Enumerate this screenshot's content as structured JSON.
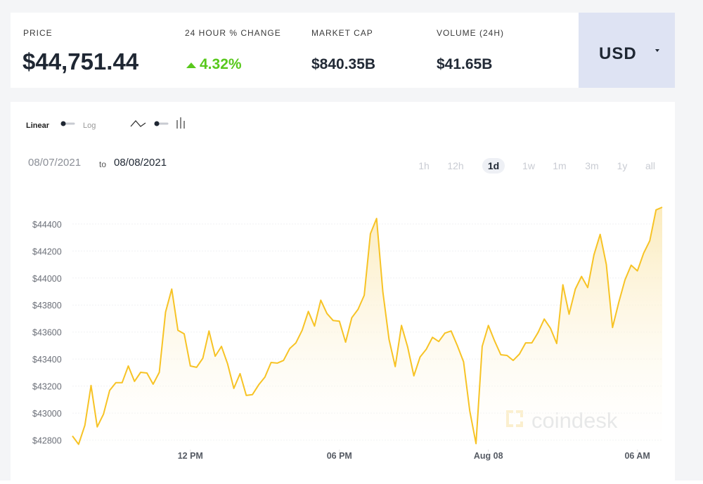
{
  "header": {
    "stats": [
      {
        "label": "PRICE",
        "value": "$44,751.44"
      },
      {
        "label": "24 HOUR % CHANGE",
        "value": "4.32%"
      },
      {
        "label": "MARKET CAP",
        "value": "$840.35B"
      },
      {
        "label": "VOLUME (24H)",
        "value": "$41.65B"
      }
    ],
    "currency": "USD"
  },
  "controls": {
    "scale_options": [
      "Linear",
      "Log"
    ],
    "date_from": "08/07/2021",
    "date_sep": "to",
    "date_to": "08/08/2021",
    "ranges": [
      "1h",
      "12h",
      "1d",
      "1w",
      "1m",
      "3m",
      "1y",
      "all"
    ]
  },
  "watermark": "coindesk",
  "chart_data": {
    "type": "line",
    "color": "#f7c325",
    "area": true,
    "grid": true,
    "x": [
      7.25,
      7.5,
      7.75,
      8,
      8.25,
      8.5,
      8.75,
      9,
      9.25,
      9.5,
      9.75,
      10,
      10.25,
      10.5,
      10.75,
      11,
      11.25,
      11.5,
      11.75,
      12,
      12.25,
      12.5,
      12.75,
      13,
      13.25,
      13.5,
      13.75,
      14,
      14.25,
      14.5,
      14.75,
      15,
      15.25,
      15.5,
      15.75,
      16,
      16.25,
      16.5,
      16.75,
      17,
      17.25,
      17.5,
      17.75,
      18,
      18.25,
      18.5,
      18.75,
      19,
      19.25,
      19.5,
      19.75,
      20,
      20.25,
      20.5,
      20.75,
      21,
      21.25,
      21.5,
      21.75,
      22,
      22.25,
      22.5,
      22.75,
      23,
      23.25,
      23.5,
      23.75,
      24,
      24.25,
      24.5,
      24.75,
      25,
      25.25,
      25.5,
      25.75,
      26,
      26.25,
      26.5,
      26.75,
      27,
      27.25,
      27.5,
      27.75,
      28,
      28.25,
      28.5,
      28.75,
      29,
      29.25,
      29.5,
      29.75,
      30,
      30.25,
      30.5,
      30.75,
      31
    ],
    "values": [
      42831,
      42769,
      42909,
      43204,
      42898,
      42992,
      43168,
      43225,
      43225,
      43349,
      43235,
      43302,
      43297,
      43214,
      43302,
      43748,
      43918,
      43613,
      43587,
      43349,
      43339,
      43406,
      43608,
      43421,
      43494,
      43364,
      43183,
      43292,
      43131,
      43137,
      43209,
      43266,
      43375,
      43370,
      43390,
      43478,
      43520,
      43613,
      43753,
      43644,
      43836,
      43737,
      43685,
      43680,
      43525,
      43706,
      43768,
      43872,
      44328,
      44441,
      43898,
      43546,
      43344,
      43649,
      43489,
      43276,
      43416,
      43473,
      43561,
      43530,
      43592,
      43608,
      43499,
      43380,
      43017,
      42774,
      43494,
      43649,
      43535,
      43432,
      43427,
      43390,
      43437,
      43520,
      43520,
      43597,
      43696,
      43628,
      43515,
      43950,
      43732,
      43918,
      44012,
      43929,
      44172,
      44323,
      44100,
      43634,
      43820,
      43986,
      44095,
      44053,
      44183,
      44276,
      44504,
      44524
    ],
    "xlim": [
      7.25,
      31
    ],
    "xticks": [
      {
        "value": 12,
        "label": "12 PM"
      },
      {
        "value": 18,
        "label": "06 PM"
      },
      {
        "value": 24,
        "label": "Aug 08"
      },
      {
        "value": 30,
        "label": "06 AM"
      }
    ],
    "ylim": [
      42730,
      44550
    ],
    "yticks": [
      {
        "value": 42800,
        "label": "$42800"
      },
      {
        "value": 43000,
        "label": "$43000"
      },
      {
        "value": 43200,
        "label": "$43200"
      },
      {
        "value": 43400,
        "label": "$43400"
      },
      {
        "value": 43600,
        "label": "$43600"
      },
      {
        "value": 43800,
        "label": "$43800"
      },
      {
        "value": 44000,
        "label": "$44000"
      },
      {
        "value": 44200,
        "label": "$44200"
      },
      {
        "value": 44400,
        "label": "$44400"
      }
    ]
  }
}
